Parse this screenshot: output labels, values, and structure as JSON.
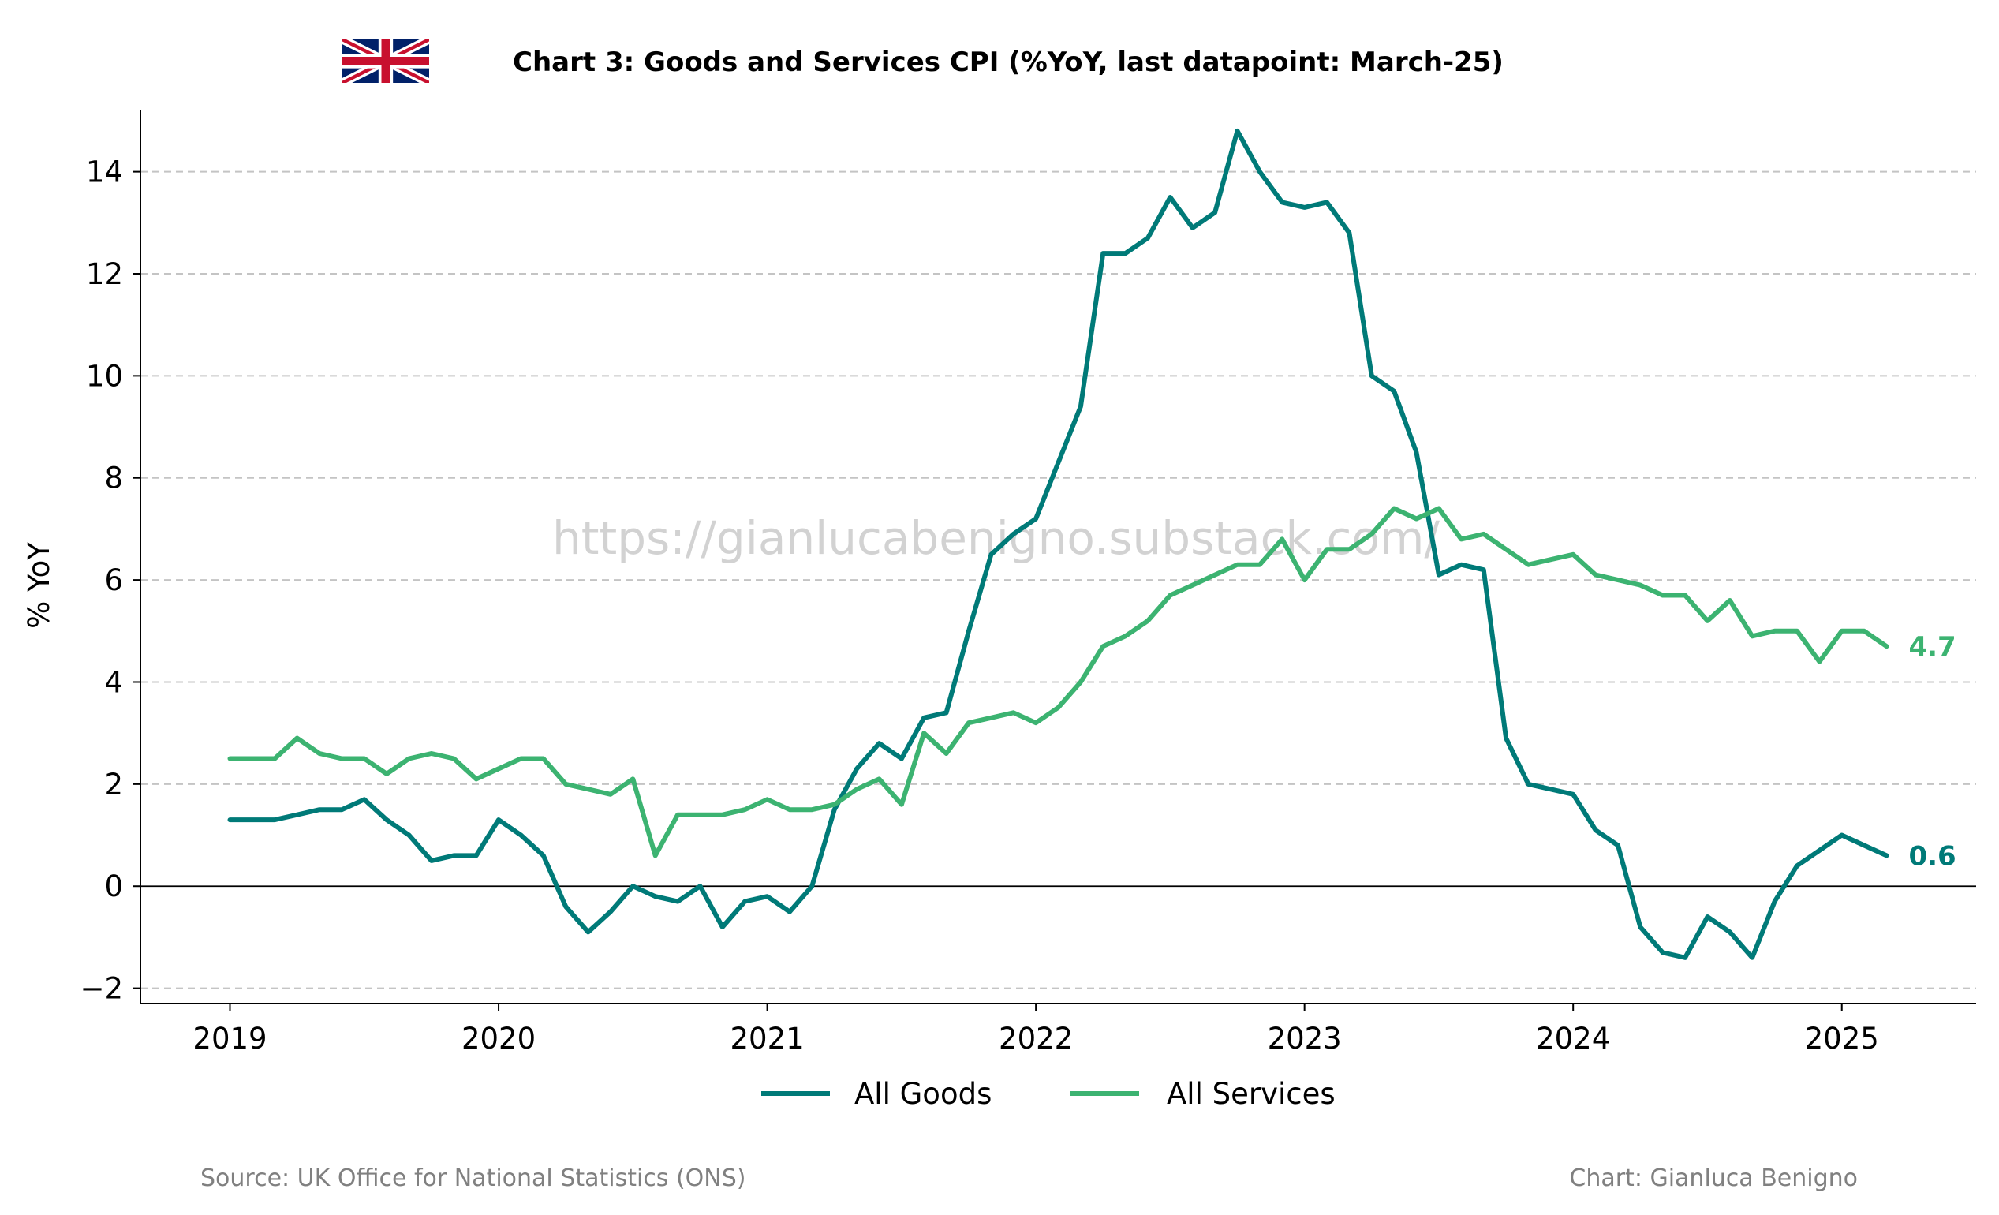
{
  "title": "Chart 3: Goods and Services CPI (%YoY, last datapoint: March-25)",
  "watermark": "https://gianlucabenigno.substack.com/",
  "source": "Source: UK Office for National Statistics (ONS)",
  "credit": "Chart: Gianluca Benigno",
  "flag": "uk-flag",
  "chart_data": {
    "type": "line",
    "title": "Chart 3: Goods and Services CPI (%YoY, last datapoint: March-25)",
    "xlabel": "",
    "ylabel": "% YoY",
    "x_start": "2019-01",
    "x_end": "2025-03",
    "x_frequency": "monthly",
    "x_ticks": [
      "2019",
      "2020",
      "2021",
      "2022",
      "2023",
      "2024",
      "2025"
    ],
    "xlim": [
      "2018-09",
      "2025-07"
    ],
    "ylim": [
      -2.3,
      15.2
    ],
    "y_ticks": [
      -2,
      0,
      2,
      4,
      6,
      8,
      10,
      12,
      14
    ],
    "y_tick_labels": [
      "−2",
      "0",
      "2",
      "4",
      "6",
      "8",
      "10",
      "12",
      "14"
    ],
    "grid": "horizontal dashed",
    "legend_position": "bottom-center",
    "series": [
      {
        "name": "All Goods",
        "color": "#007a78",
        "end_label": "0.6",
        "values": [
          1.3,
          1.3,
          1.3,
          1.4,
          1.5,
          1.5,
          1.7,
          1.3,
          1.0,
          0.5,
          0.6,
          0.6,
          1.3,
          1.0,
          0.6,
          -0.4,
          -0.9,
          -0.5,
          0.0,
          -0.2,
          -0.3,
          0.0,
          -0.8,
          -0.3,
          -0.2,
          -0.5,
          0.0,
          1.5,
          2.3,
          2.8,
          2.5,
          3.3,
          3.4,
          5.0,
          6.5,
          6.9,
          7.2,
          8.3,
          9.4,
          12.4,
          12.4,
          12.7,
          13.5,
          12.9,
          13.2,
          14.8,
          14.0,
          13.4,
          13.3,
          13.4,
          12.8,
          10.0,
          9.7,
          8.5,
          6.1,
          6.3,
          6.2,
          2.9,
          2.0,
          1.9,
          1.8,
          1.1,
          0.8,
          -0.8,
          -1.3,
          -1.4,
          -0.6,
          -0.9,
          -1.4,
          -0.3,
          0.4,
          0.7,
          1.0,
          0.8,
          0.6
        ]
      },
      {
        "name": "All Services",
        "color": "#3cb371",
        "end_label": "4.7",
        "values": [
          2.5,
          2.5,
          2.5,
          2.9,
          2.6,
          2.5,
          2.5,
          2.2,
          2.5,
          2.6,
          2.5,
          2.1,
          2.3,
          2.5,
          2.5,
          2.0,
          1.9,
          1.8,
          2.1,
          0.6,
          1.4,
          1.4,
          1.4,
          1.5,
          1.7,
          1.5,
          1.5,
          1.6,
          1.9,
          2.1,
          1.6,
          3.0,
          2.6,
          3.2,
          3.3,
          3.4,
          3.2,
          3.5,
          4.0,
          4.7,
          4.9,
          5.2,
          5.7,
          5.9,
          6.1,
          6.3,
          6.3,
          6.8,
          6.0,
          6.6,
          6.6,
          6.9,
          7.4,
          7.2,
          7.4,
          6.8,
          6.9,
          6.6,
          6.3,
          6.4,
          6.5,
          6.1,
          6.0,
          5.9,
          5.7,
          5.7,
          5.2,
          5.6,
          4.9,
          5.0,
          5.0,
          4.4,
          5.0,
          5.0,
          4.7
        ]
      }
    ]
  }
}
